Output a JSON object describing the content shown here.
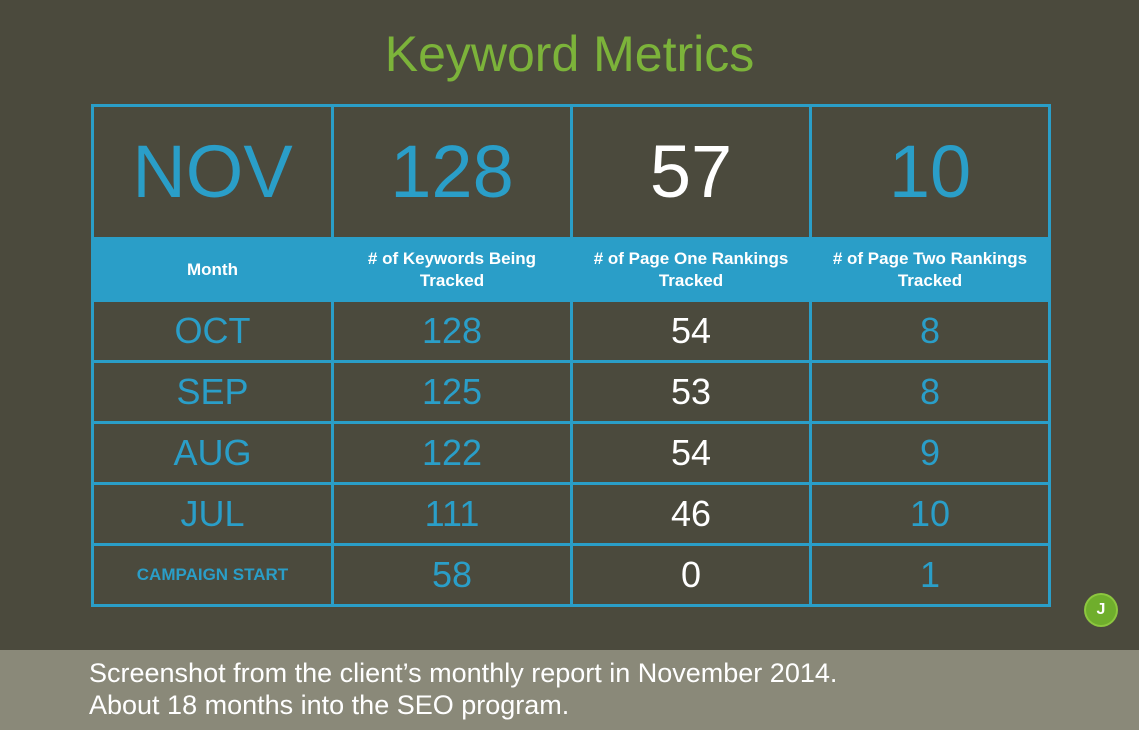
{
  "title": "Keyword Metrics",
  "chart_data": {
    "type": "table",
    "title": "Keyword Metrics",
    "current": {
      "month": "NOV",
      "keywords": "128",
      "page_one": "57",
      "page_two": "10"
    },
    "columns": [
      "Month",
      "# of Keywords Being Tracked",
      "# of Page One Rankings Tracked",
      "# of Page Two Rankings Tracked"
    ],
    "rows": [
      {
        "month": "OCT",
        "keywords": "128",
        "page_one": "54",
        "page_two": "8"
      },
      {
        "month": "SEP",
        "keywords": "125",
        "page_one": "53",
        "page_two": "8"
      },
      {
        "month": "AUG",
        "keywords": "122",
        "page_one": "54",
        "page_two": "9"
      },
      {
        "month": "JUL",
        "keywords": "111",
        "page_one": "46",
        "page_two": "10"
      },
      {
        "month": "CAMPAIGN START",
        "keywords": "58",
        "page_one": "0",
        "page_two": "1"
      }
    ]
  },
  "badge": "J",
  "caption": {
    "line1": "Screenshot from the client’s monthly report in November 2014.",
    "line2": "About 18 months into the SEO program."
  },
  "colors": {
    "background": "#4b4a3d",
    "accent_blue": "#2a9ec8",
    "title_green": "#7cb33a",
    "caption_bar": "#8a8979"
  }
}
